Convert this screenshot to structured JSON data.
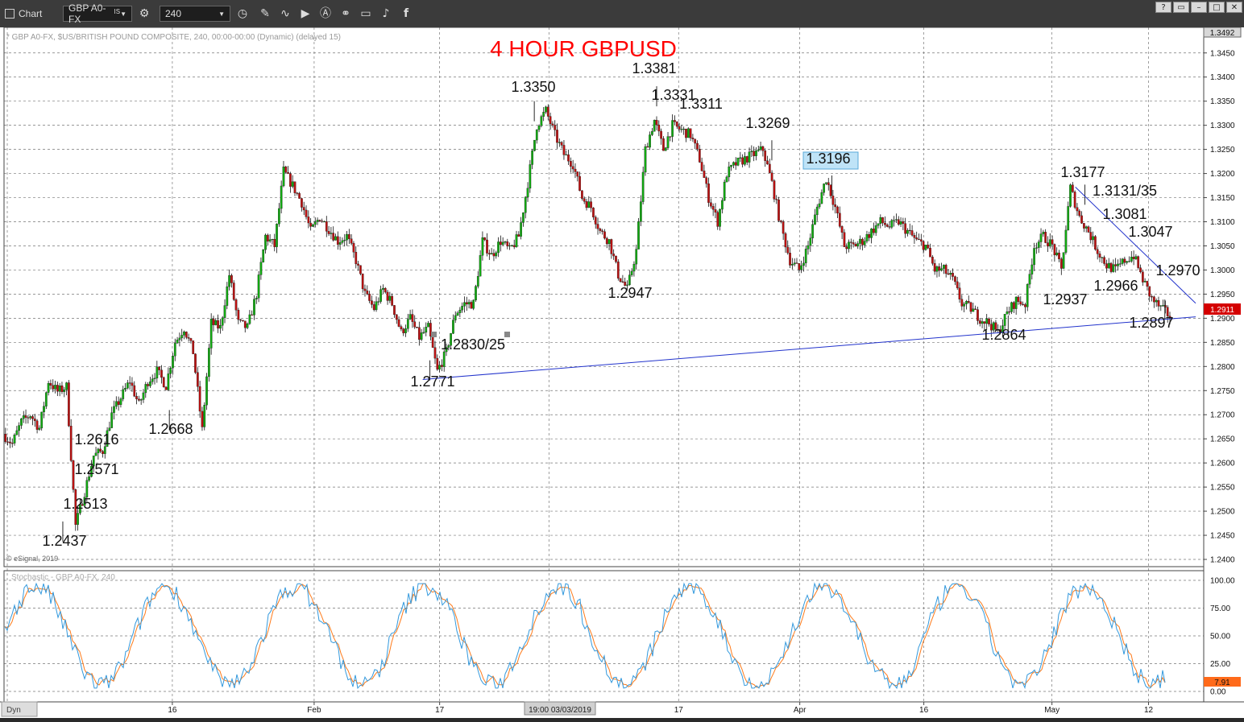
{
  "toolbar": {
    "app_label": "Chart",
    "symbol": "GBP A0-FX",
    "symbol_superscript": "IS",
    "interval": "240"
  },
  "chart_data": {
    "type": "candlestick",
    "title": "4 HOUR GBPUSD",
    "info_line": "* GBP A0-FX, $US/BRITISH POUND COMPOSITE, 240, 00:00-00:00 (Dynamic) (delayed 15)",
    "copyright": "© eSignal, 2019",
    "price_axis": {
      "ylim": [
        1.2385,
        1.3503
      ],
      "ticks": [
        "1.3450",
        "1.3400",
        "1.3350",
        "1.3300",
        "1.3250",
        "1.3200",
        "1.3150",
        "1.3100",
        "1.3050",
        "1.3000",
        "1.2950",
        "1.2900",
        "1.2850",
        "1.2800",
        "1.2750",
        "1.2700",
        "1.2650",
        "1.2600",
        "1.2550",
        "1.2500",
        "1.2450",
        "1.2400"
      ],
      "top_label": "1.3492",
      "last_price": "1.2911"
    },
    "time_axis": {
      "ticks": [
        "16",
        "Feb",
        "17",
        "Apr",
        "16",
        "May",
        "12"
      ],
      "extra_ticks": [
        "17",
        "17"
      ],
      "crosshair_label": "19:00 03/03/2019"
    },
    "annotations": [
      {
        "text": "1.3381",
        "price": 1.3381
      },
      {
        "text": "1.3350",
        "price": 1.335
      },
      {
        "text": "1.3331",
        "price": 1.3331
      },
      {
        "text": "1.3311",
        "price": 1.3311
      },
      {
        "text": "1.3269",
        "price": 1.3269
      },
      {
        "text": "1.3196",
        "price": 1.3196,
        "boxed": true
      },
      {
        "text": "1.3177",
        "price": 1.3177
      },
      {
        "text": "1.3131/35",
        "price": 1.3133
      },
      {
        "text": "1.3081",
        "price": 1.3081
      },
      {
        "text": "1.3047",
        "price": 1.3047
      },
      {
        "text": "1.2970",
        "price": 1.297
      },
      {
        "text": "1.2966",
        "price": 1.2966
      },
      {
        "text": "1.2947",
        "price": 1.2947
      },
      {
        "text": "1.2937",
        "price": 1.2937
      },
      {
        "text": "1.2897",
        "price": 1.2897
      },
      {
        "text": "1.2864",
        "price": 1.2864
      },
      {
        "text": "1.2830/25",
        "price": 1.2828
      },
      {
        "text": "1.2771",
        "price": 1.2771
      },
      {
        "text": "1.2668",
        "price": 1.2668
      },
      {
        "text": "1.2616",
        "price": 1.2616
      },
      {
        "text": "1.2571",
        "price": 1.2571
      },
      {
        "text": "1.2513",
        "price": 1.2513
      },
      {
        "text": "1.2437",
        "price": 1.2437
      }
    ],
    "price_path": [
      1.266,
      1.264,
      1.2685,
      1.27,
      1.2672,
      1.277,
      1.2748,
      1.2758,
      1.247,
      1.254,
      1.2615,
      1.2625,
      1.27,
      1.2735,
      1.277,
      1.272,
      1.277,
      1.279,
      1.276,
      1.285,
      1.288,
      1.283,
      1.2668,
      1.289,
      1.288,
      1.299,
      1.289,
      1.288,
      1.295,
      1.307,
      1.305,
      1.3205,
      1.3175,
      1.314,
      1.308,
      1.311,
      1.3085,
      1.306,
      1.307,
      1.302,
      1.295,
      1.292,
      1.296,
      1.293,
      1.287,
      1.29,
      1.286,
      1.288,
      1.279,
      1.283,
      1.291,
      1.293,
      1.293,
      1.306,
      1.303,
      1.306,
      1.304,
      1.307,
      1.318,
      1.33,
      1.333,
      1.328,
      1.324,
      1.322,
      1.315,
      1.313,
      1.308,
      1.306,
      1.299,
      1.296,
      1.304,
      1.325,
      1.331,
      1.325,
      1.33,
      1.329,
      1.328,
      1.323,
      1.315,
      1.31,
      1.32,
      1.322,
      1.323,
      1.324,
      1.325,
      1.318,
      1.309,
      1.302,
      1.3,
      1.305,
      1.313,
      1.319,
      1.313,
      1.305,
      1.305,
      1.306,
      1.308,
      1.31,
      1.309,
      1.31,
      1.308,
      1.306,
      1.305,
      1.3,
      1.3,
      1.298,
      1.293,
      1.292,
      1.29,
      1.289,
      1.287,
      1.291,
      1.2937,
      1.293,
      1.305,
      1.307,
      1.305,
      1.3,
      1.317,
      1.311,
      1.308,
      1.304,
      1.301,
      1.3,
      1.302,
      1.303,
      1.298,
      1.294,
      1.292,
      1.2905
    ],
    "trendlines": [
      {
        "name": "support",
        "from": {
          "x_frac": 0.349,
          "price": 1.2773
        },
        "to": {
          "x_frac": 0.9933,
          "price": 1.2903
        }
      },
      {
        "name": "resistance",
        "from": {
          "x_frac": 0.893,
          "price": 1.3172
        },
        "to": {
          "x_frac": 0.9933,
          "price": 1.2931
        }
      }
    ],
    "stochastic": {
      "label": "Stochastic - GBP A0-FX, 240",
      "ylim": [
        0,
        100
      ],
      "ticks": [
        "100.00",
        "75.00",
        "50.00",
        "25.00",
        "0.00"
      ],
      "last_value": "7.91"
    }
  }
}
